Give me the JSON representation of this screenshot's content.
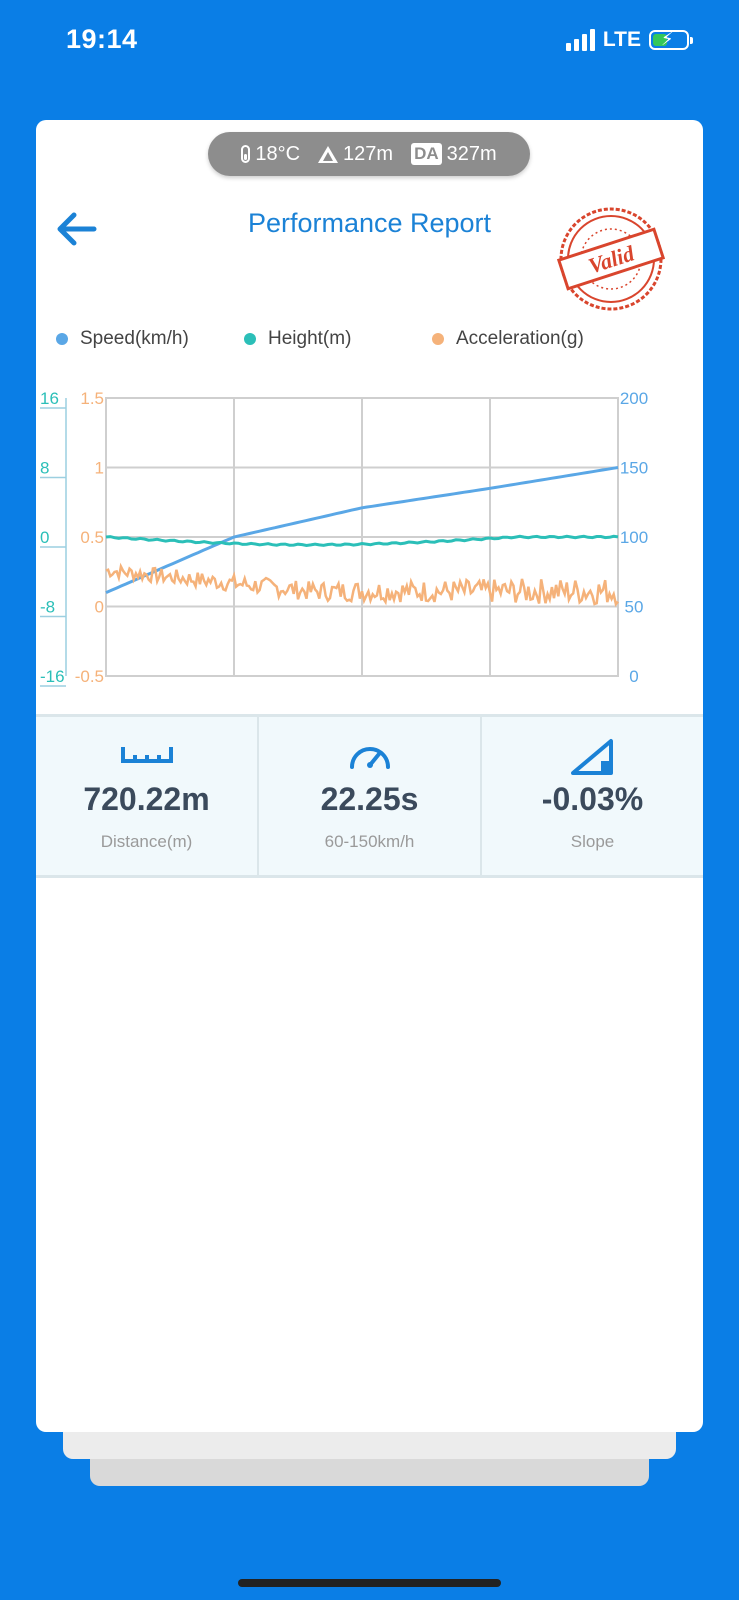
{
  "status_bar": {
    "time": "19:14",
    "network": "LTE"
  },
  "env": {
    "temperature": "18°C",
    "altitude": "127m",
    "da_label": "DA",
    "density_altitude": "327m"
  },
  "header": {
    "title": "Performance Report",
    "stamp_text": "Valid"
  },
  "colors": {
    "speed": "#5aa7e6",
    "height": "#2bbfb8",
    "acceleration": "#f5b27a",
    "accent": "#1b82d6",
    "stamp": "#d9452d"
  },
  "chart_data": {
    "type": "line",
    "x_grid_divisions": 4,
    "series": [
      {
        "name": "Speed(km/h)",
        "axis": "right",
        "description_points": [
          [
            0,
            60
          ],
          [
            0.25,
            100
          ],
          [
            0.5,
            121
          ],
          [
            0.75,
            135
          ],
          [
            1.0,
            150
          ]
        ]
      },
      {
        "name": "Height(m)",
        "axis": "left_outer",
        "values_approx": "flat around -0.2"
      },
      {
        "name": "Acceleration(g)",
        "axis": "left_inner",
        "values_approx": "noisy, ~0.25 declining to ~0.1"
      }
    ],
    "axes": {
      "left_outer": {
        "ticks": [
          "16",
          "8",
          "0",
          "-8",
          "-16"
        ],
        "range": [
          -16,
          16
        ]
      },
      "left_inner": {
        "ticks": [
          "1.5",
          "1",
          "0.5",
          "0",
          "-0.5"
        ],
        "range": [
          -0.5,
          1.5
        ]
      },
      "right": {
        "ticks": [
          "200",
          "150",
          "100",
          "50",
          "0"
        ],
        "range": [
          0,
          200
        ]
      }
    },
    "grid": true,
    "legend_position": "top"
  },
  "stats": [
    {
      "value": "720.22m",
      "label": "Distance(m)"
    },
    {
      "value": "22.25s",
      "label": "60-150km/h"
    },
    {
      "value": "-0.03%",
      "label": "Slope"
    }
  ]
}
